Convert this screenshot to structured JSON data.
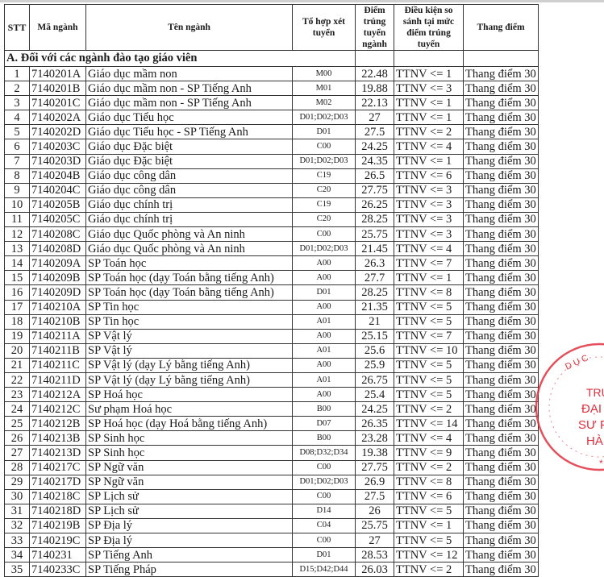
{
  "headers": {
    "stt": "STT",
    "code": "Mã ngành",
    "name": "Tên ngành",
    "combo": "Tổ hợp xét tuyển",
    "score": "Điểm trúng tuyển ngành",
    "condition": "Điều kiện so sánh tại mức điểm trúng tuyển",
    "scale": "Thang điểm"
  },
  "section_title": "A. Đối với các ngành đào tạo giáo viên",
  "rows": [
    [
      "1",
      "7140201A",
      "Giáo dục mầm non",
      "M00",
      "22.48",
      "TTNV <= 1",
      "Thang điểm 30"
    ],
    [
      "2",
      "7140201B",
      "Giáo dục mầm non - SP Tiếng Anh",
      "M01",
      "19.88",
      "TTNV <= 3",
      "Thang điểm 30"
    ],
    [
      "3",
      "7140201C",
      "Giáo dục mầm non - SP Tiếng Anh",
      "M02",
      "22.13",
      "TTNV <= 1",
      "Thang điểm 30"
    ],
    [
      "4",
      "7140202A",
      "Giáo dục Tiểu học",
      "D01;D02;D03",
      "27",
      "TTNV <= 1",
      "Thang điểm 30"
    ],
    [
      "5",
      "7140202D",
      "Giáo dục Tiểu học - SP Tiếng Anh",
      "D01",
      "27.5",
      "TTNV <= 2",
      "Thang điểm 30"
    ],
    [
      "6",
      "7140203C",
      "Giáo dục Đặc biệt",
      "C00",
      "24.25",
      "TTNV <= 4",
      "Thang điểm 30"
    ],
    [
      "7",
      "7140203D",
      "Giáo dục Đặc biệt",
      "D01;D02;D03",
      "24.35",
      "TTNV <= 1",
      "Thang điểm 30"
    ],
    [
      "8",
      "7140204B",
      "Giáo dục công dân",
      "C19",
      "26.5",
      "TTNV <= 6",
      "Thang điểm 30"
    ],
    [
      "9",
      "7140204C",
      "Giáo dục công dân",
      "C20",
      "27.75",
      "TTNV <= 3",
      "Thang điểm 30"
    ],
    [
      "10",
      "7140205B",
      "Giáo dục chính trị",
      "C19",
      "26.25",
      "TTNV <= 3",
      "Thang điểm 30"
    ],
    [
      "11",
      "7140205C",
      "Giáo dục chính trị",
      "C20",
      "28.25",
      "TTNV <= 3",
      "Thang điểm 30"
    ],
    [
      "12",
      "7140208C",
      "Giáo dục Quốc phòng và An ninh",
      "C00",
      "25.75",
      "TTNV <= 3",
      "Thang điểm 30"
    ],
    [
      "13",
      "7140208D",
      "Giáo dục Quốc phòng và An ninh",
      "D01;D02;D03",
      "21.45",
      "TTNV <= 4",
      "Thang điểm 30"
    ],
    [
      "14",
      "7140209A",
      "SP Toán học",
      "A00",
      "26.3",
      "TTNV <= 7",
      "Thang điểm 30"
    ],
    [
      "15",
      "7140209B",
      "SP Toán học (dạy Toán bằng tiếng Anh)",
      "A00",
      "27.7",
      "TTNV <= 1",
      "Thang điểm 30"
    ],
    [
      "16",
      "7140209D",
      "SP Toán học (dạy Toán bằng tiếng Anh)",
      "D01",
      "28.25",
      "TTNV <= 8",
      "Thang điểm 30"
    ],
    [
      "17",
      "7140210A",
      "SP Tin học",
      "A00",
      "21.35",
      "TTNV <= 5",
      "Thang điểm 30"
    ],
    [
      "18",
      "7140210B",
      "SP Tin học",
      "A01",
      "21",
      "TTNV <= 5",
      "Thang điểm 30"
    ],
    [
      "19",
      "7140211A",
      "SP Vật lý",
      "A00",
      "25.15",
      "TTNV <= 7",
      "Thang điểm 30"
    ],
    [
      "20",
      "7140211B",
      "SP Vật lý",
      "A01",
      "25.6",
      "TTNV <= 10",
      "Thang điểm 30"
    ],
    [
      "21",
      "7140211C",
      "SP Vật lý (dạy Lý bằng tiếng Anh)",
      "A00",
      "25.9",
      "TTNV <= 5",
      "Thang điểm 30"
    ],
    [
      "22",
      "7140211D",
      "SP Vật lý (dạy Lý bằng tiếng Anh)",
      "A01",
      "26.75",
      "TTNV <= 5",
      "Thang điểm 30"
    ],
    [
      "23",
      "7140212A",
      "SP Hoá học",
      "A00",
      "25.4",
      "TTNV <= 5",
      "Thang điểm 30"
    ],
    [
      "24",
      "7140212C",
      "Sư phạm Hoá học",
      "B00",
      "24.25",
      "TTNV <= 2",
      "Thang điểm 30"
    ],
    [
      "25",
      "7140212B",
      "SP Hoá học (dạy Hoá bằng tiếng Anh)",
      "D07",
      "26.35",
      "TTNV <= 14",
      "Thang điểm 30"
    ],
    [
      "26",
      "7140213B",
      "SP Sinh học",
      "B00",
      "23.28",
      "TTNV <= 4",
      "Thang điểm 30"
    ],
    [
      "27",
      "7140213D",
      "SP Sinh học",
      "D08;D32;D34",
      "19.38",
      "TTNV <= 9",
      "Thang điểm 30"
    ],
    [
      "28",
      "7140217C",
      "SP Ngữ văn",
      "C00",
      "27.75",
      "TTNV <= 2",
      "Thang điểm 30"
    ],
    [
      "29",
      "7140217D",
      "SP Ngữ văn",
      "D01;D02;D03",
      "26.9",
      "TTNV <= 8",
      "Thang điểm 30"
    ],
    [
      "30",
      "7140218C",
      "SP Lịch sử",
      "C00",
      "27.5",
      "TTNV <= 6",
      "Thang điểm 30"
    ],
    [
      "31",
      "7140218D",
      "SP Lịch sử",
      "D14",
      "26",
      "TTNV <= 5",
      "Thang điểm 30"
    ],
    [
      "32",
      "7140219B",
      "SP Địa lý",
      "C04",
      "25.75",
      "TTNV <= 1",
      "Thang điểm 30"
    ],
    [
      "33",
      "7140219C",
      "SP Địa lý",
      "C00",
      "27",
      "TTNV <= 5",
      "Thang điểm 30"
    ],
    [
      "34",
      "7140231",
      "SP Tiếng Anh",
      "D01",
      "28.53",
      "TTNV <= 12",
      "Thang điểm 30"
    ],
    [
      "35",
      "7140233C",
      "SP Tiếng Pháp",
      "D15;D42;D44",
      "26.03",
      "TTNV <= 2",
      "Thang điểm 30"
    ]
  ],
  "stamp": {
    "color": "#e0303e",
    "lines": [
      "TRƯỜ",
      "ĐẠI H",
      "SƯ PH",
      "HÀ N"
    ],
    "ring_text": "DỤC"
  }
}
